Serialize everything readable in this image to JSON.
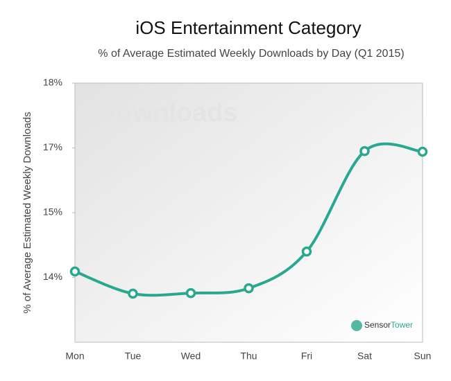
{
  "chart_data": {
    "type": "line",
    "title": "iOS Entertainment Category",
    "subtitle": "% of Average Estimated Weekly Downloads by Day (Q1 2015)",
    "y_label": "% of Average Estimated Weekly Downloads",
    "watermark": "Downloads",
    "logo": [
      "Sensor",
      "Tower"
    ],
    "categories": [
      "Mon",
      "Tue",
      "Wed",
      "Thu",
      "Fri",
      "Sat",
      "Sun"
    ],
    "values": [
      14.31,
      13.9,
      13.91,
      14.0,
      14.68,
      16.54,
      16.53
    ],
    "color": "#2aa88f",
    "ylim": [
      13.0,
      17.8
    ],
    "yticks": [
      {
        "value": 17.8,
        "label": "18%"
      },
      {
        "value": 16.6,
        "label": "17%"
      },
      {
        "value": 15.4,
        "label": "15%"
      },
      {
        "value": 14.2,
        "label": "14%"
      }
    ],
    "grid": false
  }
}
